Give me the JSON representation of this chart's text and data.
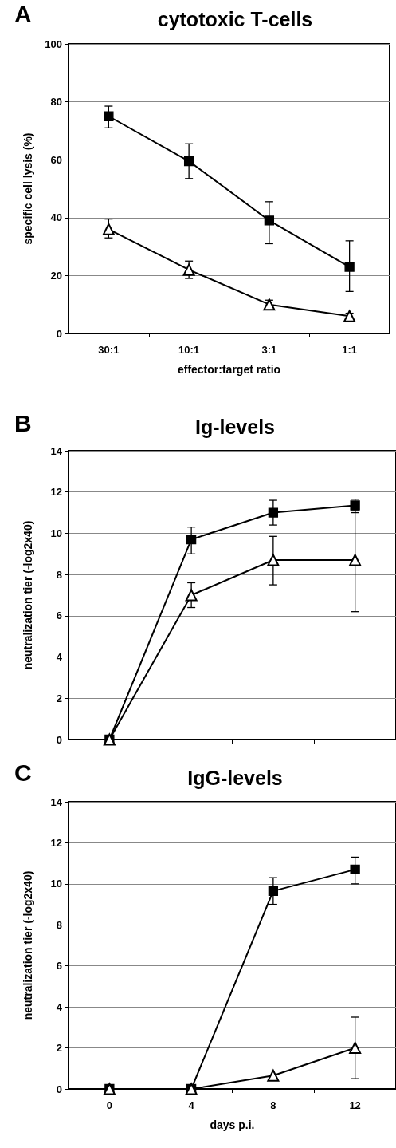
{
  "chart_data": [
    {
      "type": "line",
      "title": "cytotoxic T-cells",
      "annotations": [
        "A"
      ],
      "xlabel": "effector:target ratio",
      "ylabel": "specific cell lysis (%)",
      "categories": [
        "30:1",
        "10:1",
        "3:1",
        "1:1"
      ],
      "ylim": [
        0,
        100
      ],
      "yticks": [
        0,
        20,
        40,
        60,
        80,
        100
      ],
      "grid": "y",
      "line_style": "solid",
      "series": [
        {
          "color": "#000000",
          "marker": "square",
          "values": [
            75,
            59.5,
            39,
            23
          ],
          "errors": [
            [
              71,
              78.5
            ],
            [
              53.5,
              65.5
            ],
            [
              31,
              45.5
            ],
            [
              14.5,
              32
            ]
          ]
        },
        {
          "color": "#000000",
          "marker": "triangle",
          "values": [
            36,
            22,
            10,
            6
          ],
          "errors": [
            [
              33,
              39.5
            ],
            [
              19,
              25
            ],
            1.5,
            1
          ]
        }
      ]
    },
    {
      "type": "line",
      "title": "Ig-levels",
      "annotations": [
        "B"
      ],
      "ylabel": "neutralization tier (-log2x40)",
      "categories": [
        "0",
        "4",
        "8",
        "12"
      ],
      "tick_labels": "y",
      "ylim": [
        0,
        14
      ],
      "yticks": [
        0,
        2,
        4,
        6,
        8,
        10,
        12,
        14
      ],
      "grid": "y",
      "line_style": "solid",
      "series": [
        {
          "color": "#000000",
          "marker": "square",
          "values": [
            0,
            9.7,
            11,
            11.35
          ],
          "errors": [
            null,
            [
              9,
              10.3
            ],
            [
              10.4,
              11.6
            ],
            [
              11,
              11.65
            ]
          ]
        },
        {
          "color": "#000000",
          "marker": "triangle",
          "values": [
            0,
            7,
            8.7,
            8.7
          ],
          "errors": [
            null,
            [
              6.4,
              7.6
            ],
            [
              7.5,
              9.85
            ],
            [
              6.2,
              11.1
            ]
          ]
        }
      ]
    },
    {
      "type": "line",
      "title": "IgG-levels",
      "annotations": [
        "C"
      ],
      "xlabel": "days p.i.",
      "ylabel": "neutralization tier (-log2x40)",
      "categories": [
        "0",
        "4",
        "8",
        "12"
      ],
      "ylim": [
        0,
        14
      ],
      "yticks": [
        0,
        2,
        4,
        6,
        8,
        10,
        12,
        14
      ],
      "grid": "y",
      "line_style": "solid",
      "series": [
        {
          "color": "#000000",
          "marker": "square",
          "values": [
            0,
            0,
            9.65,
            10.7
          ],
          "errors": [
            null,
            null,
            [
              9,
              10.3
            ],
            [
              10,
              11.3
            ]
          ]
        },
        {
          "color": "#000000",
          "marker": "triangle",
          "values": [
            0,
            0,
            0.65,
            2
          ],
          "errors": [
            null,
            null,
            null,
            [
              0.5,
              3.5
            ]
          ]
        }
      ]
    }
  ]
}
